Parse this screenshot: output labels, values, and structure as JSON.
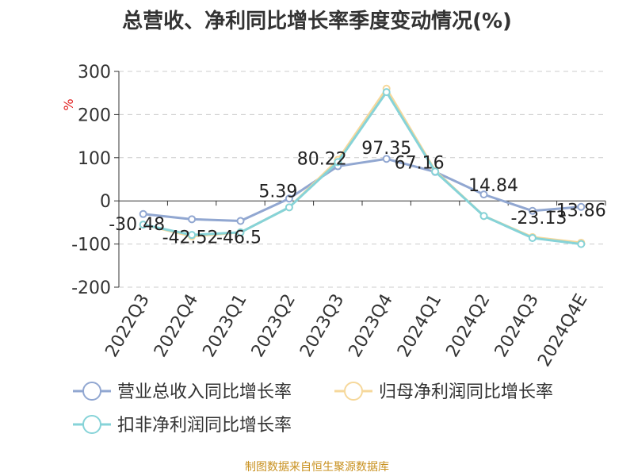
{
  "chart_data": {
    "type": "line",
    "title": "总营收、净利同比增长率季度变动情况(%)",
    "ylabel": "%",
    "ylim": [
      -200,
      300
    ],
    "yticks": [
      300,
      200,
      100,
      0,
      -100,
      -200
    ],
    "grid": true,
    "legend_position": "bottom",
    "categories": [
      "2022Q3",
      "2022Q4",
      "2023Q1",
      "2023Q2",
      "2023Q3",
      "2023Q4",
      "2024Q1",
      "2024Q2",
      "2024Q3",
      "2024Q4E"
    ],
    "series": [
      {
        "name": "营业总收入同比增长率",
        "color": "#91a7d1",
        "values": [
          -30.48,
          -42.52,
          -46.5,
          5.39,
          80.22,
          97.35,
          67.16,
          14.84,
          -23.13,
          -13.86
        ],
        "labels": [
          "-30.48",
          "-42.52",
          "-46.5",
          "5.39",
          "80.22",
          "97.35",
          "67.16",
          "14.84",
          "-23.13",
          "-13.86"
        ]
      },
      {
        "name": "归母净利润同比增长率",
        "color": "#f6d89b",
        "values": [
          -55,
          -82,
          -73,
          -15,
          95,
          260,
          70,
          -35,
          -84,
          -97
        ]
      },
      {
        "name": "扣非净利润同比增长率",
        "color": "#86d3d8",
        "values": [
          -55,
          -79,
          -73,
          -15,
          90,
          252,
          68,
          -35,
          -86,
          -100
        ]
      }
    ]
  },
  "footer": {
    "source": "制图数据来自恒生聚源数据库"
  }
}
